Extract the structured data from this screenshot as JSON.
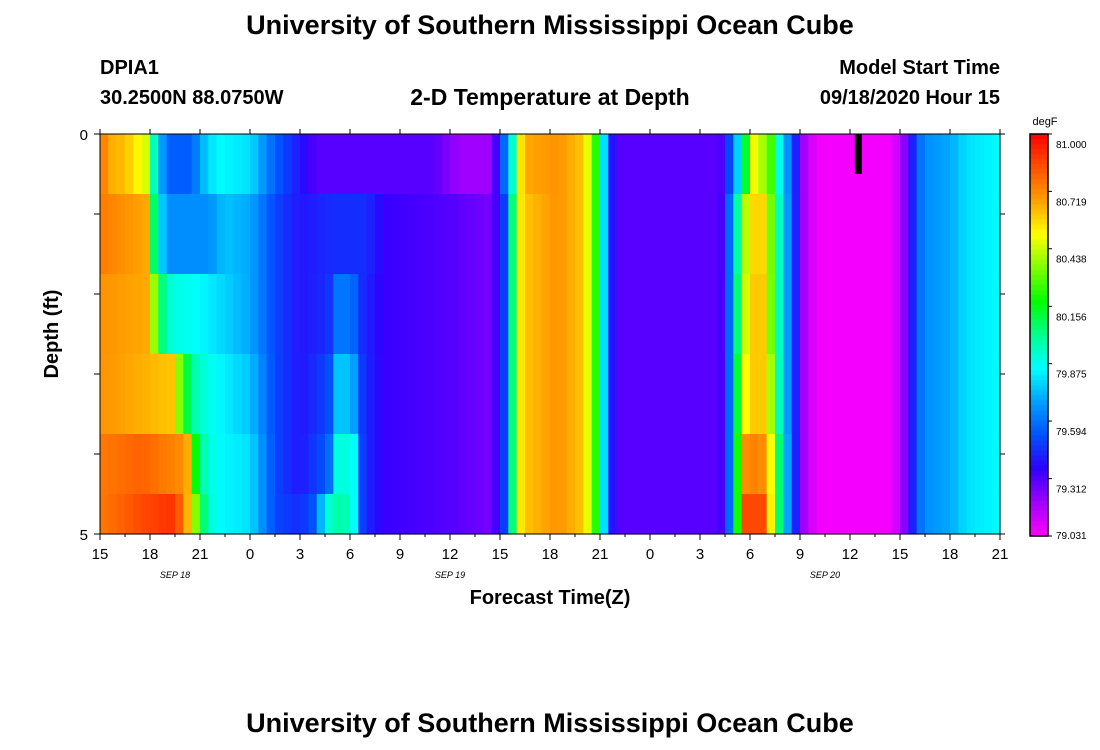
{
  "header": {
    "title_top": "University of Southern Mississippi Ocean Cube",
    "station_id": "DPIA1",
    "station_location": "30.2500N 88.0750W",
    "chart_title": "2-D Temperature at Depth",
    "model_label": "Model Start Time",
    "model_time": "09/18/2020 Hour 15"
  },
  "footer": {
    "title_bottom": "University of Southern Mississippi Ocean Cube"
  },
  "colors": {
    "scale": [
      "#ff00ff",
      "#a000ff",
      "#3000ff",
      "#0050ff",
      "#00a0ff",
      "#00ffff",
      "#00ff90",
      "#00ff00",
      "#80ff00",
      "#ffff00",
      "#ffa000",
      "#ff5000",
      "#ff0000"
    ],
    "overlay": "#000000"
  },
  "chart_data": {
    "type": "heatmap",
    "title": "2-D Temperature at Depth",
    "xlabel": "Forecast Time(Z)",
    "ylabel": "Depth (ft)",
    "x_tick_labels": [
      "15",
      "18",
      "21",
      "0",
      "3",
      "6",
      "9",
      "12",
      "15",
      "18",
      "21",
      "0",
      "3",
      "6",
      "9",
      "12",
      "15",
      "18",
      "21"
    ],
    "date_labels": [
      {
        "label": "SEP 18",
        "hour": 4.5
      },
      {
        "label": "SEP 19",
        "hour": 21
      },
      {
        "label": "SEP 20",
        "hour": 43.5
      }
    ],
    "x_range_hours": [
      0,
      54
    ],
    "y_tick_labels": [
      "0",
      "5"
    ],
    "ylim": [
      0,
      5
    ],
    "colorbar": {
      "unit": "degF",
      "labels": [
        "81.000",
        "80.719",
        "80.438",
        "80.156",
        "79.875",
        "79.594",
        "79.312",
        "79.031"
      ],
      "range": [
        79.031,
        81.0
      ]
    },
    "depth_levels": [
      0.25,
      1.25,
      2.25,
      3.25,
      4.25,
      4.75
    ],
    "profile": [
      [
        [
          0,
          80.8
        ],
        [
          0.5,
          80.65
        ],
        [
          1.5,
          80.62
        ],
        [
          2.8,
          80.45
        ],
        [
          3.3,
          79.9
        ],
        [
          4.0,
          79.55
        ],
        [
          5.5,
          79.55
        ],
        [
          6.3,
          79.75
        ],
        [
          7,
          79.85
        ],
        [
          9,
          79.8
        ],
        [
          10.5,
          79.55
        ],
        [
          12,
          79.4
        ],
        [
          13,
          79.3
        ],
        [
          20,
          79.3
        ],
        [
          21.5,
          79.2
        ],
        [
          23.5,
          79.2
        ],
        [
          24.3,
          79.6
        ],
        [
          25,
          80.1
        ],
        [
          25.3,
          80.65
        ],
        [
          27.5,
          80.7
        ],
        [
          29,
          80.6
        ],
        [
          30,
          80.1
        ],
        [
          30.5,
          79.5
        ],
        [
          31,
          79.3
        ],
        [
          37.2,
          79.3
        ],
        [
          38,
          79.6
        ],
        [
          38.6,
          80.0
        ],
        [
          39.2,
          80.5
        ],
        [
          40.2,
          80.3
        ],
        [
          40.7,
          79.9
        ],
        [
          41.5,
          79.55
        ],
        [
          42.2,
          79.2
        ],
        [
          43,
          79.05
        ],
        [
          47.5,
          79.05
        ],
        [
          48,
          79.15
        ],
        [
          48.5,
          79.3
        ],
        [
          49,
          79.55
        ],
        [
          49.5,
          79.65
        ],
        [
          51,
          79.7
        ],
        [
          52,
          79.8
        ],
        [
          54,
          79.85
        ]
      ],
      [
        [
          0,
          80.75
        ],
        [
          3,
          80.65
        ],
        [
          3.3,
          79.95
        ],
        [
          4,
          79.65
        ],
        [
          6.5,
          79.65
        ],
        [
          7.5,
          79.75
        ],
        [
          9,
          79.7
        ],
        [
          10.5,
          79.5
        ],
        [
          12,
          79.4
        ],
        [
          14,
          79.45
        ],
        [
          16,
          79.45
        ],
        [
          17,
          79.35
        ],
        [
          21.5,
          79.3
        ],
        [
          23.5,
          79.25
        ],
        [
          24.3,
          79.5
        ],
        [
          24.8,
          80.1
        ],
        [
          25.3,
          80.6
        ],
        [
          27.5,
          80.7
        ],
        [
          29,
          80.6
        ],
        [
          30,
          80.1
        ],
        [
          30.5,
          79.5
        ],
        [
          31,
          79.3
        ],
        [
          37.2,
          79.3
        ],
        [
          37.8,
          79.6
        ],
        [
          38.5,
          80.2
        ],
        [
          38.9,
          80.55
        ],
        [
          39.7,
          80.6
        ],
        [
          40.3,
          80.3
        ],
        [
          40.8,
          79.9
        ],
        [
          41.5,
          79.55
        ],
        [
          42.2,
          79.2
        ],
        [
          43,
          79.05
        ],
        [
          47.5,
          79.05
        ],
        [
          48,
          79.15
        ],
        [
          48.5,
          79.3
        ],
        [
          49,
          79.55
        ],
        [
          49.5,
          79.65
        ],
        [
          51,
          79.7
        ],
        [
          52,
          79.8
        ],
        [
          54,
          79.85
        ]
      ],
      [
        [
          0,
          80.7
        ],
        [
          3,
          80.65
        ],
        [
          3.5,
          80.1
        ],
        [
          4.3,
          79.9
        ],
        [
          6,
          79.85
        ],
        [
          7,
          79.8
        ],
        [
          9,
          79.7
        ],
        [
          10.5,
          79.5
        ],
        [
          12,
          79.4
        ],
        [
          13.7,
          79.45
        ],
        [
          14.2,
          79.6
        ],
        [
          15.1,
          79.6
        ],
        [
          15.7,
          79.45
        ],
        [
          17,
          79.35
        ],
        [
          21.5,
          79.3
        ],
        [
          23.5,
          79.25
        ],
        [
          24.3,
          79.5
        ],
        [
          24.8,
          80.1
        ],
        [
          25.3,
          80.6
        ],
        [
          27.5,
          80.7
        ],
        [
          29,
          80.6
        ],
        [
          30,
          80.1
        ],
        [
          30.5,
          79.5
        ],
        [
          31,
          79.3
        ],
        [
          37.2,
          79.3
        ],
        [
          37.8,
          79.6
        ],
        [
          38.5,
          80.3
        ],
        [
          39,
          80.6
        ],
        [
          39.8,
          80.6
        ],
        [
          40.3,
          80.3
        ],
        [
          40.8,
          79.9
        ],
        [
          41.5,
          79.55
        ],
        [
          42.2,
          79.2
        ],
        [
          43,
          79.05
        ],
        [
          47.5,
          79.05
        ],
        [
          48,
          79.15
        ],
        [
          48.5,
          79.3
        ],
        [
          49,
          79.55
        ],
        [
          49.5,
          79.65
        ],
        [
          51,
          79.7
        ],
        [
          52,
          79.8
        ],
        [
          54,
          79.85
        ]
      ],
      [
        [
          0,
          80.7
        ],
        [
          4.5,
          80.6
        ],
        [
          4.9,
          80.2
        ],
        [
          5.8,
          79.95
        ],
        [
          7,
          79.85
        ],
        [
          9,
          79.75
        ],
        [
          10.5,
          79.5
        ],
        [
          12,
          79.4
        ],
        [
          13.7,
          79.5
        ],
        [
          14.2,
          79.75
        ],
        [
          15.1,
          79.75
        ],
        [
          15.8,
          79.45
        ],
        [
          17,
          79.35
        ],
        [
          21.5,
          79.3
        ],
        [
          23.5,
          79.25
        ],
        [
          24.3,
          79.5
        ],
        [
          24.8,
          80.1
        ],
        [
          25.3,
          80.6
        ],
        [
          27.5,
          80.7
        ],
        [
          29,
          80.6
        ],
        [
          30,
          80.1
        ],
        [
          30.5,
          79.5
        ],
        [
          31,
          79.3
        ],
        [
          37.2,
          79.3
        ],
        [
          37.8,
          79.6
        ],
        [
          38.4,
          80.3
        ],
        [
          38.9,
          80.6
        ],
        [
          39.9,
          80.6
        ],
        [
          40.4,
          80.3
        ],
        [
          40.8,
          79.9
        ],
        [
          41.5,
          79.55
        ],
        [
          42.2,
          79.2
        ],
        [
          43,
          79.05
        ],
        [
          47.5,
          79.05
        ],
        [
          48,
          79.15
        ],
        [
          48.5,
          79.3
        ],
        [
          49,
          79.55
        ],
        [
          49.5,
          79.65
        ],
        [
          51,
          79.7
        ],
        [
          52,
          79.8
        ],
        [
          54,
          79.85
        ]
      ],
      [
        [
          0,
          80.75
        ],
        [
          2.5,
          80.8
        ],
        [
          5.2,
          80.7
        ],
        [
          5.7,
          80.2
        ],
        [
          6.3,
          79.95
        ],
        [
          7,
          79.85
        ],
        [
          9,
          79.8
        ],
        [
          10.5,
          79.5
        ],
        [
          12,
          79.4
        ],
        [
          13.7,
          79.55
        ],
        [
          14.2,
          79.9
        ],
        [
          15.2,
          79.9
        ],
        [
          15.8,
          79.45
        ],
        [
          17,
          79.35
        ],
        [
          21.5,
          79.3
        ],
        [
          23.5,
          79.25
        ],
        [
          24.3,
          79.5
        ],
        [
          24.8,
          80.1
        ],
        [
          25.3,
          80.6
        ],
        [
          27.5,
          80.7
        ],
        [
          29,
          80.6
        ],
        [
          30,
          80.1
        ],
        [
          30.5,
          79.5
        ],
        [
          31,
          79.3
        ],
        [
          37.2,
          79.3
        ],
        [
          37.8,
          79.6
        ],
        [
          38.4,
          80.4
        ],
        [
          38.8,
          80.75
        ],
        [
          40.0,
          80.7
        ],
        [
          40.5,
          80.3
        ],
        [
          40.9,
          79.9
        ],
        [
          41.5,
          79.55
        ],
        [
          42.2,
          79.2
        ],
        [
          43,
          79.05
        ],
        [
          47.5,
          79.05
        ],
        [
          48,
          79.15
        ],
        [
          48.5,
          79.3
        ],
        [
          49,
          79.55
        ],
        [
          49.5,
          79.65
        ],
        [
          51,
          79.7
        ],
        [
          52,
          79.8
        ],
        [
          54,
          79.85
        ]
      ],
      [
        [
          0,
          80.75
        ],
        [
          2.5,
          80.85
        ],
        [
          4.5,
          80.9
        ],
        [
          5.5,
          80.55
        ],
        [
          6.0,
          80.15
        ],
        [
          6.5,
          79.95
        ],
        [
          7,
          79.85
        ],
        [
          9,
          79.8
        ],
        [
          10.5,
          79.5
        ],
        [
          12,
          79.45
        ],
        [
          13,
          79.55
        ],
        [
          13.5,
          79.9
        ],
        [
          14.5,
          80.0
        ],
        [
          15.2,
          79.9
        ],
        [
          15.8,
          79.45
        ],
        [
          17,
          79.35
        ],
        [
          21.5,
          79.3
        ],
        [
          23.5,
          79.25
        ],
        [
          24.3,
          79.5
        ],
        [
          24.8,
          80.1
        ],
        [
          25.3,
          80.6
        ],
        [
          27.5,
          80.7
        ],
        [
          29,
          80.6
        ],
        [
          30,
          80.1
        ],
        [
          30.5,
          79.5
        ],
        [
          31,
          79.3
        ],
        [
          37.2,
          79.3
        ],
        [
          37.8,
          79.6
        ],
        [
          38.4,
          80.4
        ],
        [
          38.7,
          80.85
        ],
        [
          39.9,
          80.85
        ],
        [
          40.4,
          80.4
        ],
        [
          40.9,
          79.9
        ],
        [
          41.5,
          79.55
        ],
        [
          42.2,
          79.2
        ],
        [
          43,
          79.05
        ],
        [
          47.5,
          79.05
        ],
        [
          48,
          79.15
        ],
        [
          48.5,
          79.3
        ],
        [
          49,
          79.55
        ],
        [
          49.5,
          79.65
        ],
        [
          51,
          79.7
        ],
        [
          52,
          79.8
        ],
        [
          54,
          79.85
        ]
      ]
    ],
    "overlay_marker": {
      "hour": 45.5,
      "depth_from": 0,
      "depth_to": 0.5
    }
  }
}
